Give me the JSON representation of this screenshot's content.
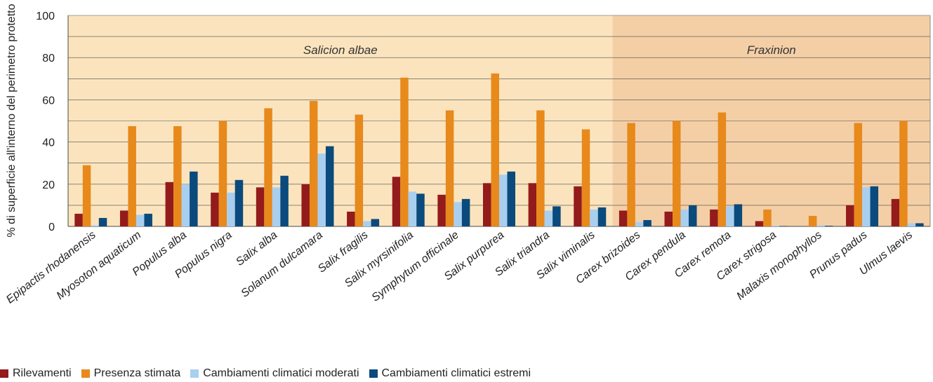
{
  "chart_data": {
    "type": "bar",
    "ylabel": "% di superficie all'interno del perimetro protetto",
    "ylim": [
      0,
      100
    ],
    "yticks": [
      0,
      20,
      40,
      60,
      80,
      100
    ],
    "grid": true,
    "legend_position": "bottom-left",
    "categories": [
      "Epipactis rhodanensis",
      "Myosoton aquaticum",
      "Populus alba",
      "Populus nigra",
      "Salix alba",
      "Solanum dulcamara",
      "Salix fragilis",
      "Salix myrsinifolia",
      "Symphytum officinale",
      "Salix purpurea",
      "Salix triandra",
      "Salix viminalis",
      "Carex brizoides",
      "Carex pendula",
      "Carex remota",
      "Carex strigosa",
      "Malaxis monophyllos",
      "Prunus padus",
      "Ulmus laevis"
    ],
    "regions": [
      {
        "label": "Salicion albae",
        "from": 0,
        "to": 11,
        "color": "#fbe4bd"
      },
      {
        "label": "Fraxinion",
        "from": 12,
        "to": 18,
        "color": "#f4cfa6"
      }
    ],
    "series": [
      {
        "name": "Rilevamenti",
        "color": "#931b1b",
        "values": [
          6,
          7.5,
          21,
          16,
          18.5,
          20,
          7,
          23.5,
          15,
          20.5,
          20.5,
          19,
          7.5,
          7,
          8,
          2.5,
          0,
          10,
          13
        ]
      },
      {
        "name": "Presenza stimata",
        "color": "#e8891c",
        "values": [
          29,
          47.5,
          47.5,
          50,
          56,
          59.5,
          53,
          70.5,
          55,
          72.5,
          55,
          46,
          49,
          50,
          54,
          8,
          5,
          49,
          50
        ]
      },
      {
        "name": "Cambiamenti climatici moderati",
        "color": "#a8cff0",
        "values": [
          0.5,
          5.5,
          20,
          16,
          18.5,
          34.5,
          2.5,
          16.5,
          11.5,
          24.5,
          7.5,
          8,
          2,
          8,
          9.5,
          0.3,
          0.5,
          18.5,
          1.5
        ]
      },
      {
        "name": "Cambiamenti climatici estremi",
        "color": "#0b4a7c",
        "values": [
          4,
          6,
          26,
          22,
          24,
          38,
          3.5,
          15.5,
          13,
          26,
          9.5,
          9,
          3,
          10,
          10.5,
          0.2,
          0.3,
          19,
          1.5
        ]
      }
    ]
  }
}
